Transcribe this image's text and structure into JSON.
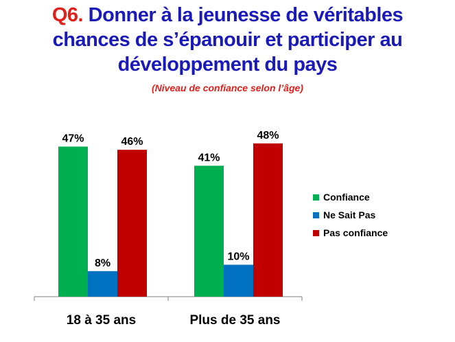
{
  "header": {
    "question_number": "Q6.",
    "title": "Donner à la jeunesse de véritables chances de s’épanouir et participer au développement du pays",
    "subtitle": "(Niveau de confiance selon l’âge)"
  },
  "chart_data": {
    "type": "bar",
    "categories": [
      "18 à 35 ans",
      "Plus de 35 ans"
    ],
    "series": [
      {
        "name": "Confiance",
        "values": [
          47,
          41
        ],
        "labels": [
          "47%",
          "41%"
        ],
        "color": "#00b050"
      },
      {
        "name": "Ne Sait Pas",
        "values": [
          8,
          10
        ],
        "labels": [
          "8%",
          "10%"
        ],
        "color": "#0070c0"
      },
      {
        "name": "Pas confiance",
        "values": [
          46,
          48
        ],
        "labels": [
          "46%",
          "48%"
        ],
        "color": "#c00000"
      }
    ],
    "ylim": [
      0,
      55
    ],
    "grid": false,
    "legend_position": "right"
  }
}
